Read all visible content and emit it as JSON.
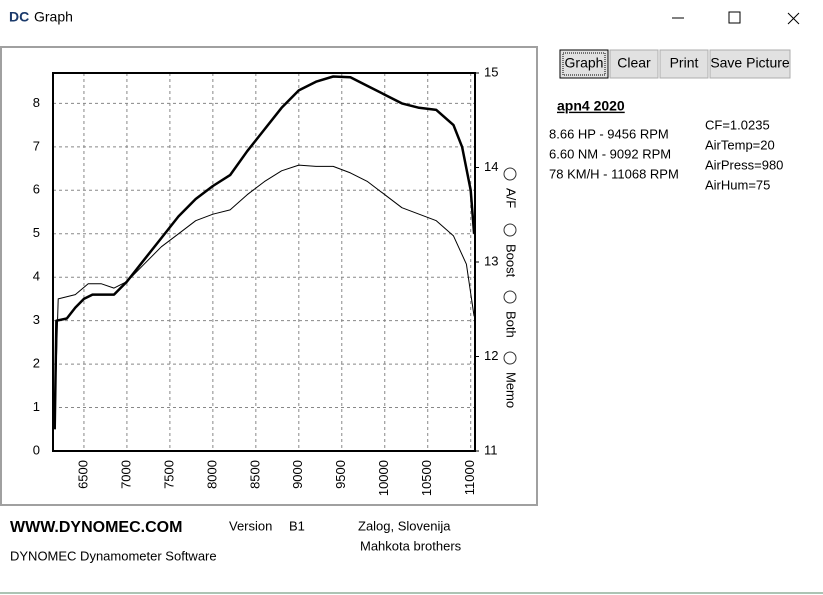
{
  "window": {
    "icon_text": "DC",
    "title": "Graph"
  },
  "buttons": [
    "Graph",
    "Clear",
    "Print",
    "Save Picture"
  ],
  "radio_options": [
    "A/F",
    "Boost",
    "Both",
    "Memo"
  ],
  "chart_data": {
    "type": "line",
    "xlim": [
      6140,
      11050
    ],
    "xticks": [
      6500,
      7000,
      7500,
      8000,
      8500,
      9000,
      9500,
      10000,
      10500,
      11000
    ],
    "ylim": [
      0,
      8.7
    ],
    "yticks": [
      0,
      1,
      2,
      3,
      4,
      5,
      6,
      7,
      8
    ],
    "y2lim": [
      11,
      15
    ],
    "y2ticks": [
      11,
      12,
      13,
      14,
      15
    ],
    "grid": true,
    "series": [
      {
        "color": "#000000",
        "x": [
          6160,
          6180,
          6300,
          6400,
          6500,
          6600,
          6700,
          6850,
          7000,
          7200,
          7400,
          7600,
          7800,
          8000,
          8200,
          8400,
          8600,
          8800,
          9000,
          9200,
          9400,
          9600,
          9800,
          10000,
          10200,
          10400,
          10600,
          10800,
          10900,
          11000,
          11040
        ],
        "values": [
          0.5,
          3.0,
          3.05,
          3.3,
          3.5,
          3.6,
          3.6,
          3.6,
          3.9,
          4.4,
          4.9,
          5.4,
          5.8,
          6.1,
          6.35,
          6.9,
          7.4,
          7.9,
          8.3,
          8.5,
          8.62,
          8.6,
          8.4,
          8.2,
          8.0,
          7.9,
          7.85,
          7.5,
          7.0,
          6.0,
          5.0
        ]
      },
      {
        "color": "#000000",
        "x": [
          6160,
          6200,
          6400,
          6550,
          6700,
          6850,
          7000,
          7200,
          7400,
          7600,
          7800,
          8000,
          8200,
          8400,
          8600,
          8800,
          9000,
          9200,
          9400,
          9600,
          9800,
          10000,
          10200,
          10400,
          10600,
          10800,
          10950,
          11040
        ],
        "values": [
          0.8,
          3.5,
          3.6,
          3.85,
          3.85,
          3.75,
          3.9,
          4.3,
          4.7,
          5.0,
          5.3,
          5.45,
          5.55,
          5.9,
          6.2,
          6.45,
          6.58,
          6.55,
          6.55,
          6.4,
          6.2,
          5.9,
          5.6,
          5.45,
          5.3,
          4.95,
          4.3,
          3.1
        ]
      }
    ]
  },
  "info": {
    "run": "apn4  2020",
    "stats": [
      "8.66 HP - 9456 RPM",
      "6.60 NM - 9092 RPM",
      "78 KM/H - 11068 RPM"
    ],
    "params": [
      "CF=1.0235",
      "AirTemp=20",
      "AirPress=980",
      "AirHum=75"
    ]
  },
  "footer": {
    "site": "WWW.DYNOMEC.COM",
    "version_label": "Version",
    "version": "B1",
    "location": "Zalog, Slovenija",
    "authors": "Mahkota brothers",
    "product": "DYNOMEC Dynamometer Software"
  }
}
